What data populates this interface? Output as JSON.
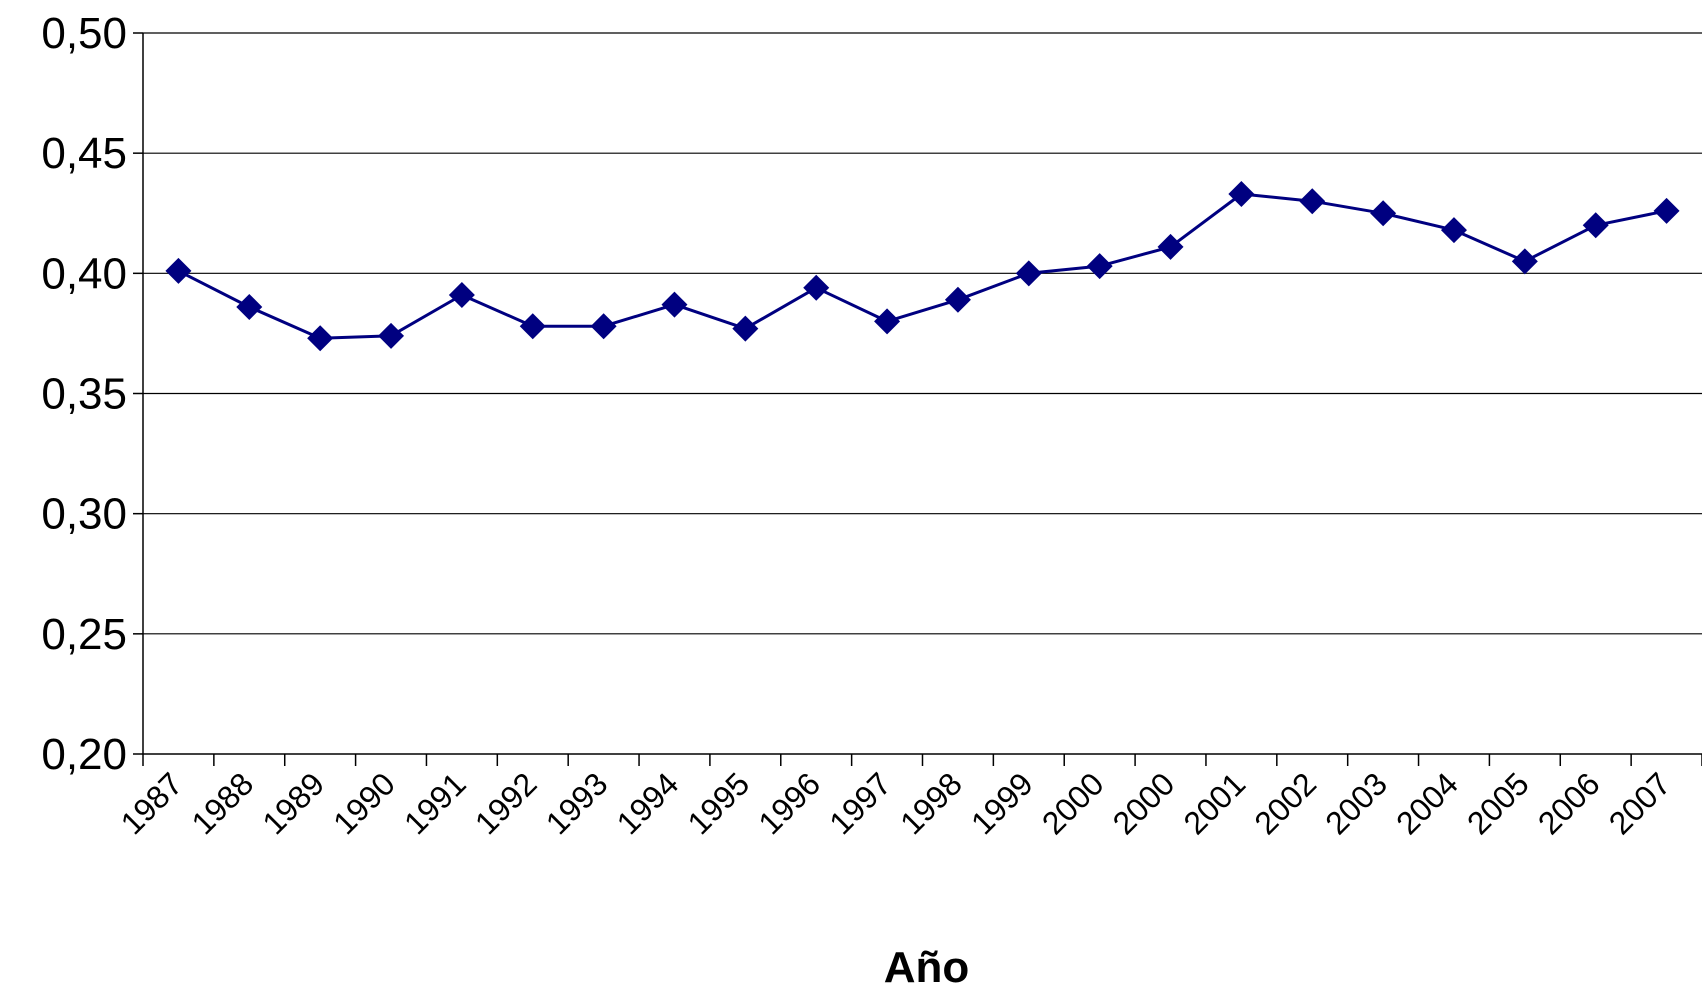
{
  "chart_data": {
    "type": "line",
    "categories": [
      "1987",
      "1988",
      "1989",
      "1990",
      "1991",
      "1992",
      "1993",
      "1994",
      "1995",
      "1996",
      "1997",
      "1998",
      "1999",
      "2000",
      "2000",
      "2001",
      "2002",
      "2003",
      "2004",
      "2005",
      "2006",
      "2007"
    ],
    "series": [
      {
        "values": [
          0.401,
          0.386,
          0.373,
          0.374,
          0.391,
          0.378,
          0.378,
          0.387,
          0.377,
          0.394,
          0.38,
          0.389,
          0.4,
          0.403,
          0.411,
          0.433,
          0.43,
          0.425,
          0.418,
          0.405,
          0.42,
          0.426
        ],
        "color": "#000080",
        "marker": "diamond"
      }
    ],
    "xlabel": "Año",
    "ylabel": "",
    "ylim": [
      0.2,
      0.5
    ],
    "yticks": [
      "0,20",
      "0,25",
      "0,30",
      "0,35",
      "0,40",
      "0,45",
      "0,50"
    ],
    "grid": true
  }
}
